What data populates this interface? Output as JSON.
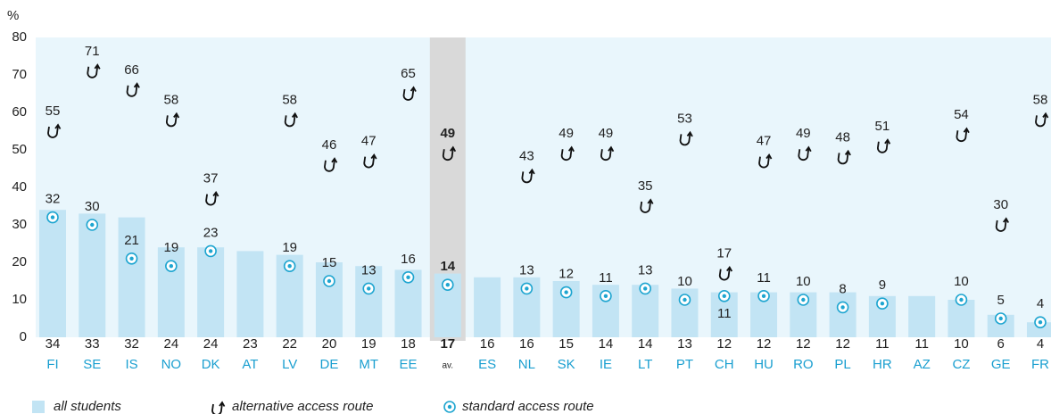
{
  "chart_data": {
    "type": "bar",
    "y_label": "%",
    "categories": [
      "FI",
      "SE",
      "IS",
      "NO",
      "DK",
      "AT",
      "LV",
      "DE",
      "MT",
      "EE",
      "av.",
      "ES",
      "NL",
      "SK",
      "IE",
      "LT",
      "PT",
      "CH",
      "HU",
      "RO",
      "PL",
      "HR",
      "AZ",
      "CZ",
      "GE",
      "FR"
    ],
    "highlight": "av.",
    "series": [
      {
        "name": "all students",
        "color": "#c2e4f4",
        "values": [
          34,
          33,
          32,
          24,
          24,
          23,
          22,
          20,
          19,
          18,
          17,
          16,
          16,
          15,
          14,
          14,
          13,
          12,
          12,
          12,
          12,
          11,
          11,
          10,
          6,
          4
        ]
      },
      {
        "name": "alternative access route",
        "color": "#111111",
        "values": [
          55,
          71,
          66,
          58,
          37,
          null,
          58,
          46,
          47,
          65,
          49,
          null,
          43,
          49,
          49,
          35,
          53,
          17,
          47,
          49,
          48,
          51,
          null,
          54,
          30,
          58
        ]
      },
      {
        "name": "standard access route",
        "color": "#1ea5d0",
        "values": [
          32,
          30,
          21,
          19,
          23,
          null,
          19,
          15,
          13,
          16,
          14,
          null,
          13,
          12,
          11,
          13,
          10,
          11,
          11,
          10,
          8,
          9,
          null,
          10,
          5,
          4
        ]
      }
    ],
    "ylim": [
      0,
      80
    ],
    "yticks": [
      0,
      10,
      20,
      30,
      40,
      50,
      60,
      70,
      80
    ]
  }
}
